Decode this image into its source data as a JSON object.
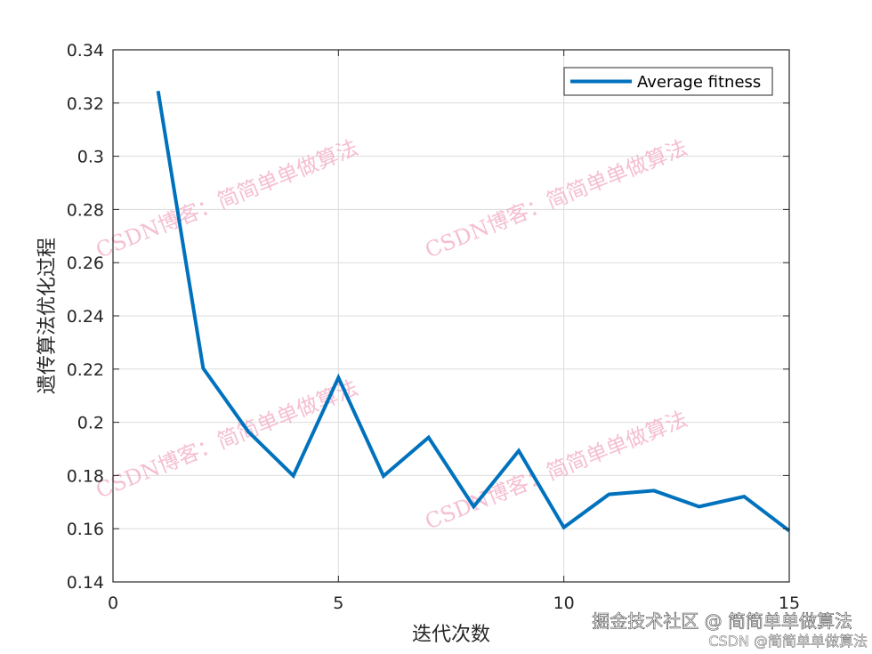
{
  "chart_data": {
    "type": "line",
    "xlabel": "迭代次数",
    "ylabel": "遗传算法优化过程",
    "xlim": [
      0,
      15
    ],
    "ylim": [
      0.14,
      0.34
    ],
    "xticks": [
      "0",
      "5",
      "10",
      "15"
    ],
    "yticks": [
      "0.14",
      "0.16",
      "0.18",
      "0.2",
      "0.22",
      "0.24",
      "0.26",
      "0.28",
      "0.3",
      "0.32",
      "0.34"
    ],
    "grid": true,
    "legend_position": "top-right",
    "series": [
      {
        "name": "Average fitness",
        "color": "#0072BD",
        "x": [
          1,
          2,
          3,
          4,
          5,
          6,
          7,
          8,
          9,
          10,
          11,
          12,
          13,
          14,
          15
        ],
        "y": [
          0.3245,
          0.2203,
          0.1965,
          0.1799,
          0.2168,
          0.1798,
          0.1943,
          0.1683,
          0.1893,
          0.1605,
          0.1729,
          0.1743,
          0.1683,
          0.1721,
          0.1592
        ]
      }
    ]
  },
  "watermarks": [
    "CSDN博客：简简单单做算法",
    "CSDN博客：简简单单做算法",
    "CSDN博客：简简单单做算法",
    "CSDN博客：简简单单做算法"
  ],
  "footer": {
    "site": "掘金技术社区 @ 简简单单做算法",
    "csdn": "CSDN @简简单单做算法"
  }
}
